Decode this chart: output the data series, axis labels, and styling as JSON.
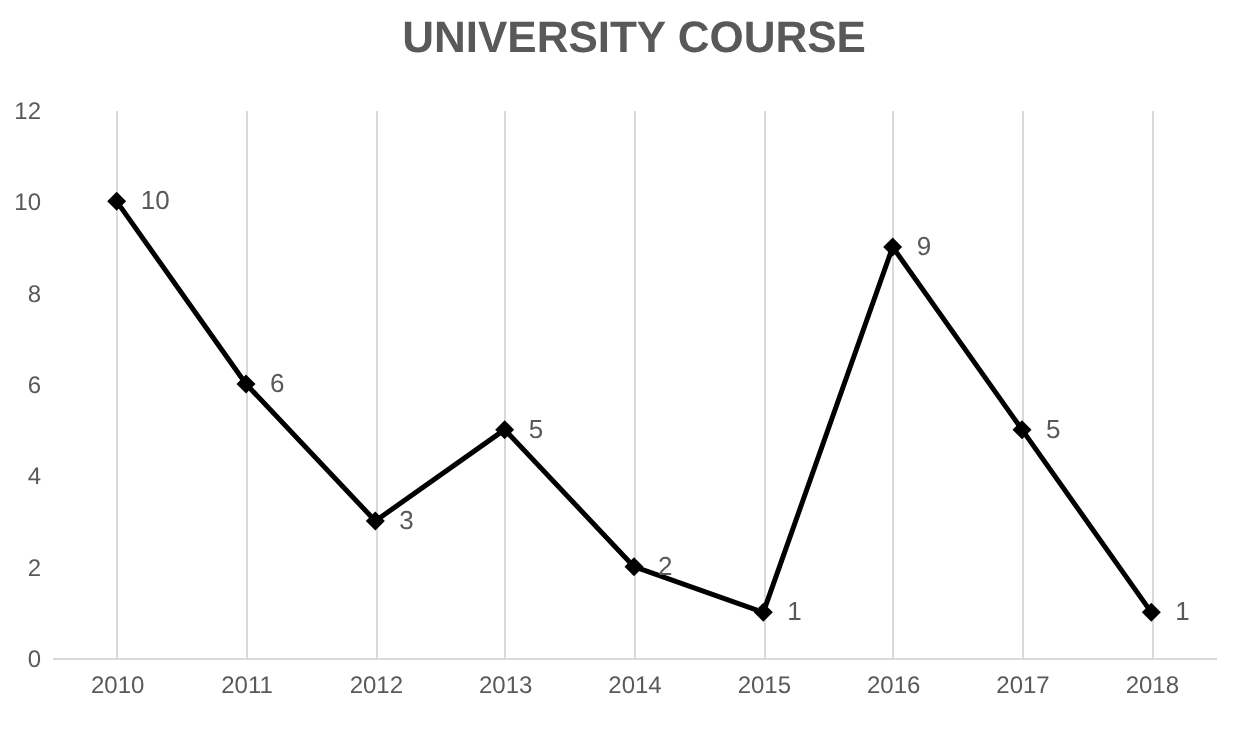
{
  "chart_data": {
    "type": "line",
    "title": "UNIVERSITY COURSE",
    "categories": [
      "2010",
      "2011",
      "2012",
      "2013",
      "2014",
      "2015",
      "2016",
      "2017",
      "2018"
    ],
    "series": [
      {
        "color": "#000000",
        "values": [
          10,
          6,
          3,
          5,
          2,
          1,
          9,
          5,
          1
        ]
      }
    ],
    "ylim": [
      0,
      12
    ],
    "yticks": [
      0,
      2,
      4,
      6,
      8,
      10,
      12
    ],
    "grid": "x",
    "marker": "diamond",
    "data_labels": true,
    "legend": false
  }
}
